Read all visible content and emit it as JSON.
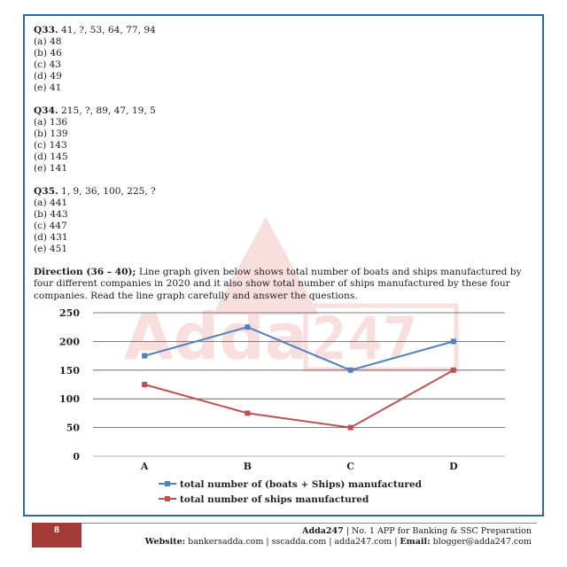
{
  "questions": [
    {
      "num": "Q33.",
      "series": "41,  ?,   53,  64,   77,  94",
      "options": [
        "(a) 48",
        "(b) 46",
        "(c) 43",
        "(d) 49",
        "(e) 41"
      ]
    },
    {
      "num": "Q34.",
      "series": "215,  ?,  89,  47,  19,  5",
      "options": [
        "(a) 136",
        "(b) 139",
        "(c) 143",
        "(d) 145",
        "(e) 141"
      ]
    },
    {
      "num": "Q35.",
      "series": "1,  9,   36,   100,  225,   ?",
      "options": [
        "(a) 441",
        "(b) 443",
        "(c) 447",
        "(d) 431",
        "(e) 451"
      ]
    }
  ],
  "direction": {
    "label": "Direction (36 – 40);",
    "text": " Line graph given below shows total number of boats and ships manufactured by four different companies in 2020 and it also show total number of ships manufactured by these four companies. Read the line graph carefully and answer the questions."
  },
  "watermark": "Adda247",
  "chart_data": {
    "type": "line",
    "categories": [
      "A",
      "B",
      "C",
      "D"
    ],
    "ylim": [
      0,
      250
    ],
    "yticks": [
      "0",
      "50",
      "100",
      "150",
      "200",
      "250"
    ],
    "grid": true,
    "legend_position": "bottom",
    "series": [
      {
        "name": "total number of (boats + Ships) manufactured",
        "values": [
          175,
          225,
          150,
          200
        ],
        "color": "#4f81bd"
      },
      {
        "name": "total number of ships manufactured",
        "values": [
          125,
          75,
          50,
          150
        ],
        "color": "#c0504d"
      }
    ]
  },
  "footer": {
    "page": "8",
    "brand": "Adda247",
    "tagline": " | No. 1 APP for Banking & SSC Preparation",
    "website_label": "Website:",
    "websites": " bankersadda.com | sscadda.com | adda247.com | ",
    "email_label": "Email:",
    "email": " blogger@adda247.com"
  }
}
